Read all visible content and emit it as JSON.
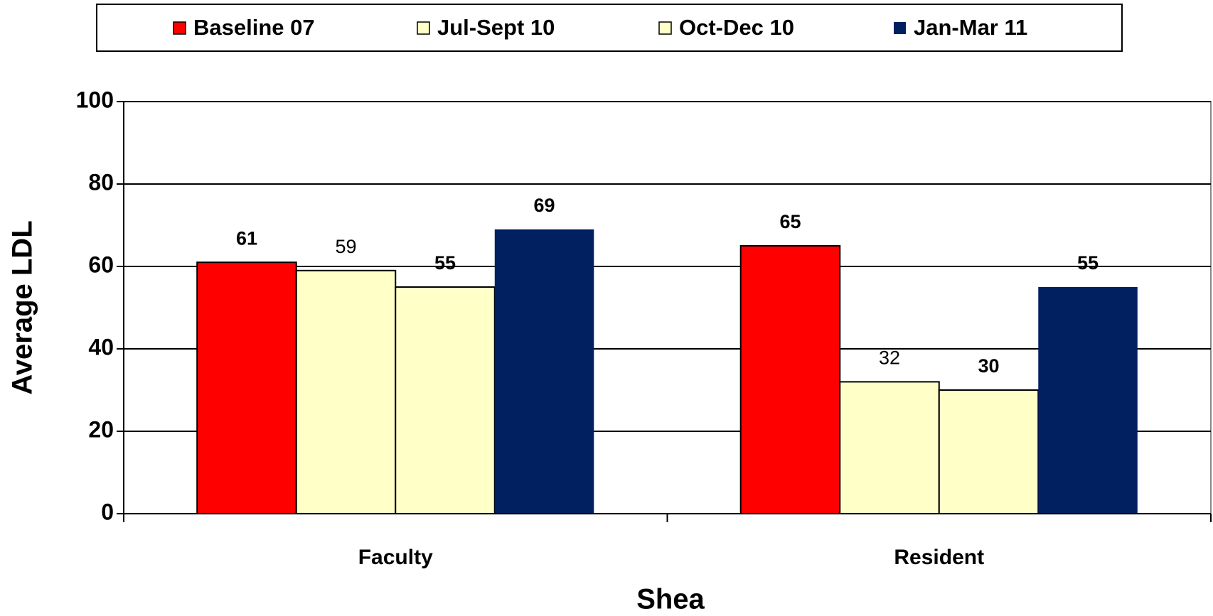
{
  "chart_data": {
    "type": "bar",
    "categories": [
      "Faculty",
      "Resident"
    ],
    "series": [
      {
        "name": "Baseline 07",
        "color": "#ff0000",
        "values": [
          61,
          65
        ]
      },
      {
        "name": "Jul-Sept 10",
        "color": "#ffffc8",
        "values": [
          59,
          32
        ]
      },
      {
        "name": "Oct-Dec 10",
        "color": "#ffffc8",
        "values": [
          55,
          30
        ]
      },
      {
        "name": "Jan-Mar 11",
        "color": "#002060",
        "values": [
          69,
          55
        ]
      }
    ],
    "xlabel": "Shea",
    "ylabel": "Average LDL",
    "ylim": [
      0,
      100
    ],
    "yticks": [
      0,
      20,
      40,
      60,
      80,
      100
    ],
    "grid": true,
    "legend": "top"
  }
}
